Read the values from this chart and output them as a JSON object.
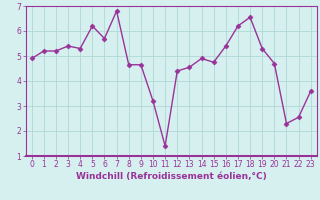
{
  "x": [
    0,
    1,
    2,
    3,
    4,
    5,
    6,
    7,
    8,
    9,
    10,
    11,
    12,
    13,
    14,
    15,
    16,
    17,
    18,
    19,
    20,
    21,
    22,
    23
  ],
  "y": [
    4.9,
    5.2,
    5.2,
    5.4,
    5.3,
    6.2,
    5.7,
    6.8,
    4.65,
    4.65,
    3.2,
    1.4,
    4.4,
    4.55,
    4.9,
    4.75,
    5.4,
    6.2,
    6.55,
    5.3,
    4.7,
    2.3,
    2.55,
    3.6
  ],
  "line_color": "#993399",
  "marker": "D",
  "marker_size": 2.5,
  "bg_color": "#d6f0f0",
  "grid_color": "#b0d8d8",
  "xlabel": "Windchill (Refroidissement éolien,°C)",
  "xlim": [
    -0.5,
    23.5
  ],
  "ylim": [
    1,
    7
  ],
  "yticks": [
    1,
    2,
    3,
    4,
    5,
    6,
    7
  ],
  "xticks": [
    0,
    1,
    2,
    3,
    4,
    5,
    6,
    7,
    8,
    9,
    10,
    11,
    12,
    13,
    14,
    15,
    16,
    17,
    18,
    19,
    20,
    21,
    22,
    23
  ],
  "xlabel_fontsize": 6.5,
  "tick_fontsize": 5.5,
  "line_width": 1.0,
  "axis_color": "#993399",
  "spine_bottom_color": "#993399",
  "label_color": "#993399"
}
